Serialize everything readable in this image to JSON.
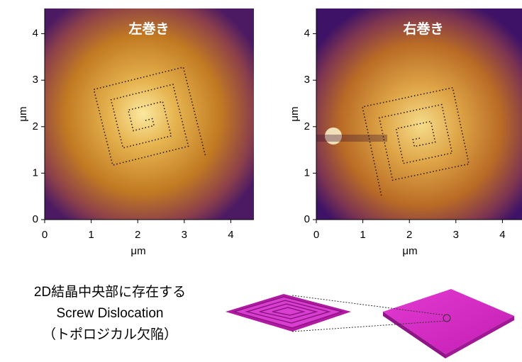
{
  "panels": [
    {
      "annotation": "左巻き",
      "xlabel": "μm",
      "ylabel": "μm",
      "xticks": [
        "0",
        "1",
        "2",
        "3",
        "4"
      ],
      "yticks": [
        "0",
        "1",
        "2",
        "3",
        "4"
      ]
    },
    {
      "annotation": "右巻き",
      "xlabel": "μm",
      "ylabel": "μm",
      "xticks": [
        "0",
        "1",
        "2",
        "3",
        "4"
      ],
      "yticks": [
        "0",
        "1",
        "2",
        "3",
        "4"
      ]
    }
  ],
  "caption": {
    "lines": [
      "2D結晶中央部に存在する",
      "Screw Dislocation",
      "（トポロジカル欠陥）"
    ]
  }
}
